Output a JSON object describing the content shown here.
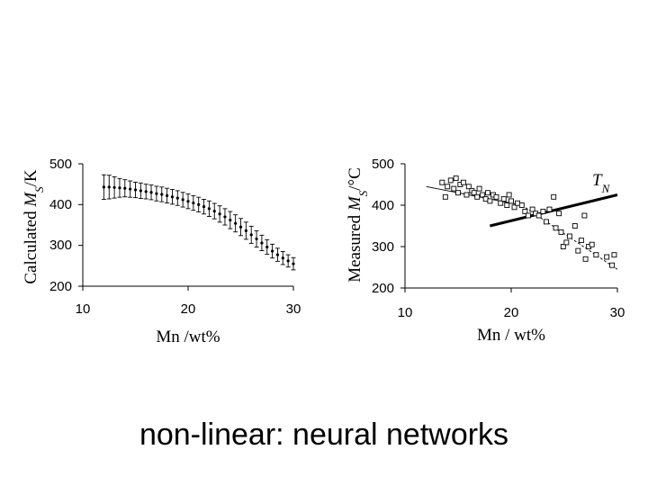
{
  "caption": "non-linear: neural networks",
  "chart_data": [
    {
      "type": "scatter",
      "xlabel": "Mn /wt%",
      "ylabel": "Calculated M_S/K",
      "xlim": [
        10,
        30
      ],
      "ylim": [
        200,
        500
      ],
      "xticks": [
        "10",
        "20",
        "30"
      ],
      "yticks": [
        "200",
        "300",
        "400",
        "500"
      ],
      "error_bars": true,
      "points": [
        {
          "x": 12.0,
          "y": 443,
          "err": 30
        },
        {
          "x": 12.5,
          "y": 443,
          "err": 29
        },
        {
          "x": 13.0,
          "y": 442,
          "err": 26
        },
        {
          "x": 13.5,
          "y": 441,
          "err": 23
        },
        {
          "x": 14.0,
          "y": 440,
          "err": 21
        },
        {
          "x": 14.5,
          "y": 438,
          "err": 20
        },
        {
          "x": 15.0,
          "y": 436,
          "err": 19
        },
        {
          "x": 15.5,
          "y": 434,
          "err": 19
        },
        {
          "x": 16.0,
          "y": 432,
          "err": 18
        },
        {
          "x": 16.5,
          "y": 430,
          "err": 18
        },
        {
          "x": 17.0,
          "y": 427,
          "err": 18
        },
        {
          "x": 17.5,
          "y": 425,
          "err": 18
        },
        {
          "x": 18.0,
          "y": 422,
          "err": 18
        },
        {
          "x": 18.5,
          "y": 419,
          "err": 18
        },
        {
          "x": 19.0,
          "y": 416,
          "err": 18
        },
        {
          "x": 19.5,
          "y": 412,
          "err": 18
        },
        {
          "x": 20.0,
          "y": 408,
          "err": 18
        },
        {
          "x": 20.5,
          "y": 404,
          "err": 18
        },
        {
          "x": 21.0,
          "y": 400,
          "err": 18
        },
        {
          "x": 21.5,
          "y": 395,
          "err": 18
        },
        {
          "x": 22.0,
          "y": 390,
          "err": 19
        },
        {
          "x": 22.5,
          "y": 384,
          "err": 19
        },
        {
          "x": 23.0,
          "y": 377,
          "err": 20
        },
        {
          "x": 23.5,
          "y": 370,
          "err": 20
        },
        {
          "x": 24.0,
          "y": 362,
          "err": 21
        },
        {
          "x": 24.5,
          "y": 354,
          "err": 21
        },
        {
          "x": 25.0,
          "y": 345,
          "err": 21
        },
        {
          "x": 25.5,
          "y": 336,
          "err": 21
        },
        {
          "x": 26.0,
          "y": 326,
          "err": 21
        },
        {
          "x": 26.5,
          "y": 316,
          "err": 20
        },
        {
          "x": 27.0,
          "y": 306,
          "err": 19
        },
        {
          "x": 27.5,
          "y": 296,
          "err": 18
        },
        {
          "x": 28.0,
          "y": 286,
          "err": 17
        },
        {
          "x": 28.5,
          "y": 277,
          "err": 16
        },
        {
          "x": 29.0,
          "y": 269,
          "err": 16
        },
        {
          "x": 29.5,
          "y": 262,
          "err": 15
        },
        {
          "x": 30.0,
          "y": 255,
          "err": 15
        }
      ]
    },
    {
      "type": "scatter",
      "xlabel": "Mn / wt%",
      "ylabel": "Measured M_S/°C",
      "xlim": [
        10,
        30
      ],
      "ylim": [
        200,
        500
      ],
      "xticks": [
        "10",
        "20",
        "30"
      ],
      "yticks": [
        "200",
        "300",
        "400",
        "500"
      ],
      "points": [
        {
          "x": 13.5,
          "y": 455
        },
        {
          "x": 13.8,
          "y": 420
        },
        {
          "x": 14.0,
          "y": 445
        },
        {
          "x": 14.3,
          "y": 460
        },
        {
          "x": 14.6,
          "y": 440
        },
        {
          "x": 14.8,
          "y": 465
        },
        {
          "x": 15.0,
          "y": 430
        },
        {
          "x": 15.2,
          "y": 450
        },
        {
          "x": 15.5,
          "y": 455
        },
        {
          "x": 15.8,
          "y": 425
        },
        {
          "x": 16.0,
          "y": 445
        },
        {
          "x": 16.3,
          "y": 435
        },
        {
          "x": 16.5,
          "y": 430
        },
        {
          "x": 16.8,
          "y": 420
        },
        {
          "x": 17.0,
          "y": 440
        },
        {
          "x": 17.3,
          "y": 425
        },
        {
          "x": 17.6,
          "y": 415
        },
        {
          "x": 17.8,
          "y": 430
        },
        {
          "x": 18.0,
          "y": 410
        },
        {
          "x": 18.3,
          "y": 425
        },
        {
          "x": 18.6,
          "y": 420
        },
        {
          "x": 19.0,
          "y": 405
        },
        {
          "x": 19.3,
          "y": 415
        },
        {
          "x": 19.6,
          "y": 400
        },
        {
          "x": 19.8,
          "y": 425
        },
        {
          "x": 20.0,
          "y": 410
        },
        {
          "x": 20.3,
          "y": 395
        },
        {
          "x": 20.6,
          "y": 405
        },
        {
          "x": 21.0,
          "y": 400
        },
        {
          "x": 21.3,
          "y": 385
        },
        {
          "x": 21.6,
          "y": 375
        },
        {
          "x": 22.0,
          "y": 390
        },
        {
          "x": 22.3,
          "y": 380
        },
        {
          "x": 22.6,
          "y": 375
        },
        {
          "x": 23.0,
          "y": 385
        },
        {
          "x": 23.3,
          "y": 360
        },
        {
          "x": 23.6,
          "y": 390
        },
        {
          "x": 24.0,
          "y": 420
        },
        {
          "x": 24.2,
          "y": 345
        },
        {
          "x": 24.5,
          "y": 380
        },
        {
          "x": 24.7,
          "y": 335
        },
        {
          "x": 24.9,
          "y": 300
        },
        {
          "x": 25.2,
          "y": 310
        },
        {
          "x": 25.5,
          "y": 325
        },
        {
          "x": 26.0,
          "y": 350
        },
        {
          "x": 26.3,
          "y": 290
        },
        {
          "x": 26.6,
          "y": 315
        },
        {
          "x": 26.9,
          "y": 375
        },
        {
          "x": 27.0,
          "y": 270
        },
        {
          "x": 27.3,
          "y": 300
        },
        {
          "x": 27.6,
          "y": 305
        },
        {
          "x": 28.0,
          "y": 280
        },
        {
          "x": 29.0,
          "y": 275
        },
        {
          "x": 29.5,
          "y": 255
        },
        {
          "x": 29.7,
          "y": 280
        }
      ],
      "lines": [
        {
          "name": "T_N",
          "x": [
            18,
            30
          ],
          "y": [
            350,
            425
          ],
          "style": "thick"
        },
        {
          "x": [
            12,
            21
          ],
          "y": [
            445,
            400
          ],
          "style": "thin"
        },
        {
          "x": [
            21,
            30
          ],
          "y": [
            400,
            245
          ],
          "style": "dashed"
        }
      ],
      "annotation": {
        "text": "T_N"
      }
    }
  ]
}
